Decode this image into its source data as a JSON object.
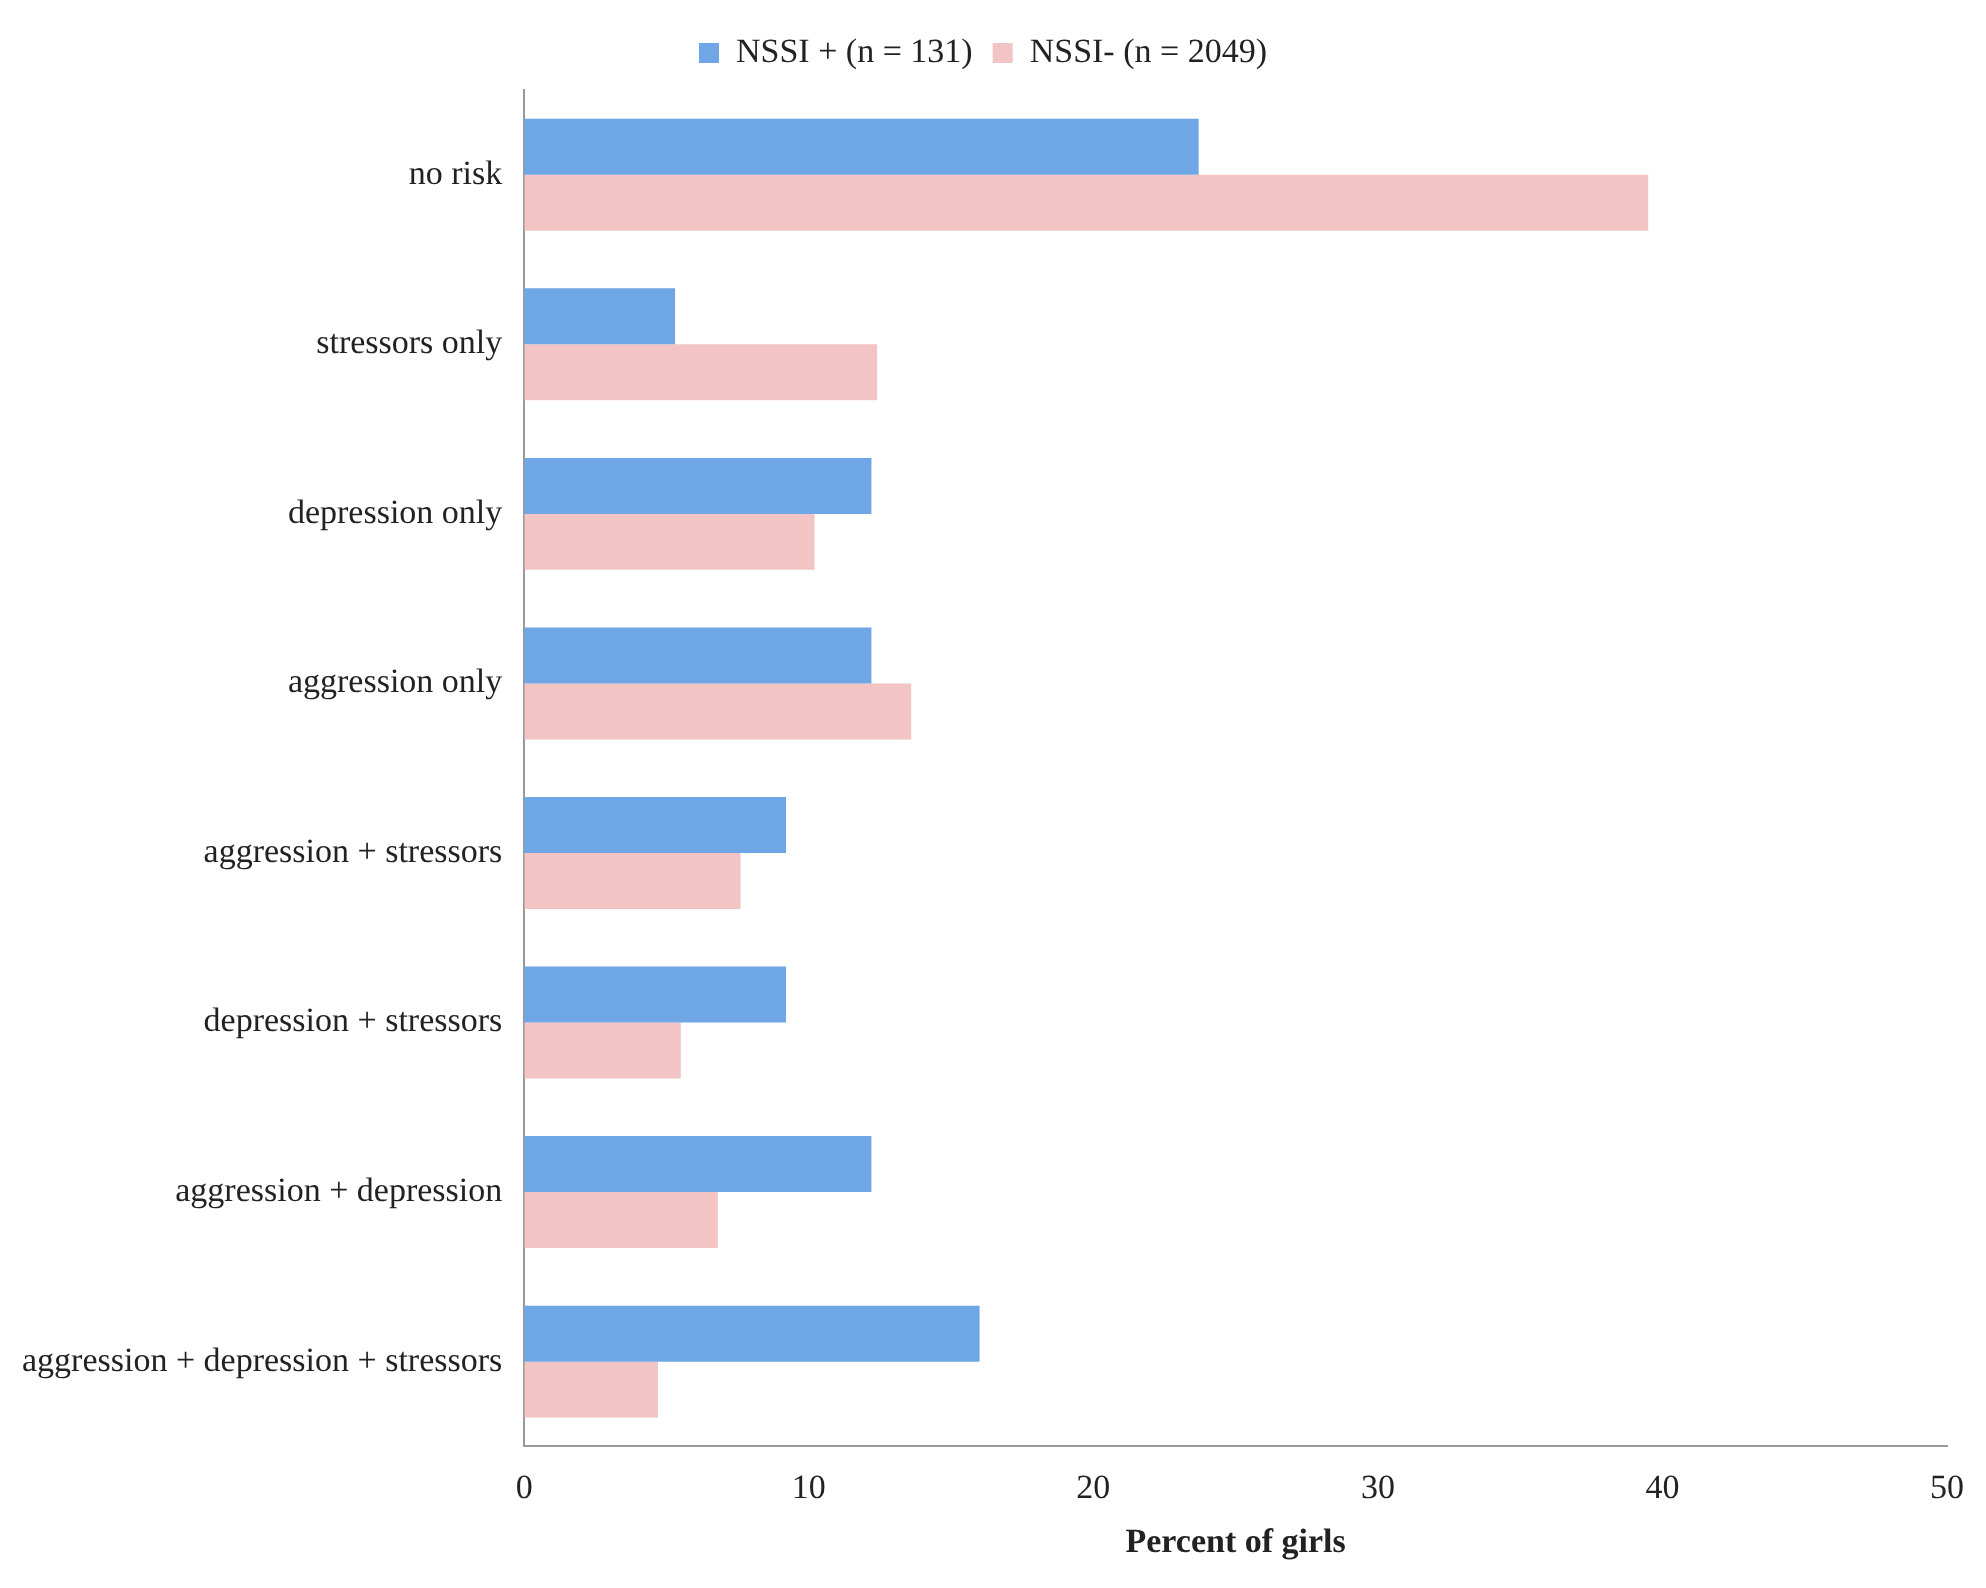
{
  "chart_data": {
    "type": "bar",
    "orientation": "horizontal",
    "xlabel": "Percent of girls",
    "categories": [
      "no risk",
      "stressors only",
      "depression only",
      "aggression only",
      "aggression + stressors",
      "depression + stressors",
      "aggression + depression",
      "aggression + depression + stressors"
    ],
    "series": [
      {
        "name": "NSSI + (n = 131)",
        "color": "#6ea6e6",
        "values": [
          23.7,
          5.3,
          12.2,
          12.2,
          9.2,
          9.2,
          12.2,
          16.0
        ]
      },
      {
        "name": "NSSI- (n = 2049)",
        "color": "#f2c4c4",
        "values": [
          39.5,
          12.4,
          10.2,
          13.6,
          7.6,
          5.5,
          6.8,
          4.7
        ]
      }
    ],
    "xlim": [
      0,
      50
    ],
    "xticks": [
      0,
      10,
      20,
      30,
      40,
      50
    ],
    "grid": false,
    "legend": "top"
  }
}
